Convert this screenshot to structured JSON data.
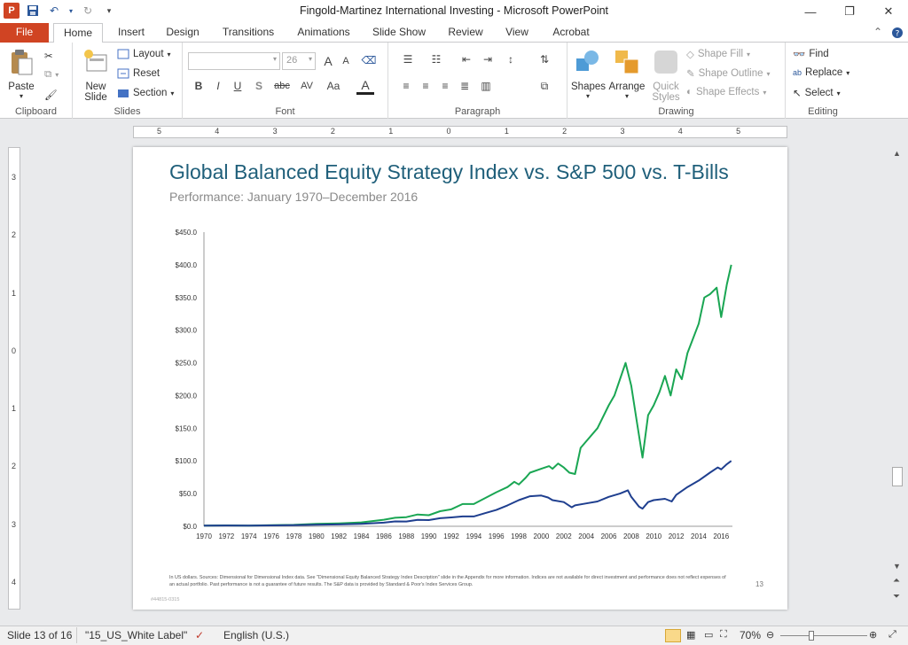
{
  "window": {
    "title": "Fingold-Martinez International Investing  -  Microsoft PowerPoint",
    "app_icon": "P",
    "qat": [
      "save-icon",
      "undo-icon",
      "redo-icon",
      "customize-icon"
    ],
    "controls": {
      "minimize": "—",
      "restore": "❐",
      "close": "✕"
    }
  },
  "tabs": [
    {
      "label": "File"
    },
    {
      "label": "Home"
    },
    {
      "label": "Insert"
    },
    {
      "label": "Design"
    },
    {
      "label": "Transitions"
    },
    {
      "label": "Animations"
    },
    {
      "label": "Slide Show"
    },
    {
      "label": "Review"
    },
    {
      "label": "View"
    },
    {
      "label": "Acrobat"
    }
  ],
  "ribbon": {
    "clipboard": {
      "label": "Clipboard",
      "paste": "Paste"
    },
    "slides": {
      "label": "Slides",
      "new_slide": "New Slide",
      "new_slide_arrow": "▾",
      "layout": "Layout",
      "reset": "Reset",
      "section": "Section"
    },
    "font": {
      "label": "Font",
      "font_name": "",
      "font_size": "26",
      "bold": "B",
      "italic": "I",
      "underline": "U",
      "shadow": "S",
      "strike": "abc",
      "spacing": "AV",
      "case": "Aa",
      "color": "A",
      "grow": "A",
      "shrink": "A"
    },
    "paragraph": {
      "label": "Paragraph"
    },
    "drawing": {
      "label": "Drawing",
      "shapes": "Shapes",
      "arrange": "Arrange",
      "quick_styles_1": "Quick",
      "quick_styles_2": "Styles",
      "shape_fill": "Shape Fill",
      "shape_outline": "Shape Outline",
      "shape_effects": "Shape Effects"
    },
    "editing": {
      "label": "Editing",
      "find": "Find",
      "replace": "Replace",
      "select": "Select"
    }
  },
  "ruler": {
    "h_labels": [
      "5",
      "4",
      "3",
      "2",
      "1",
      "0",
      "1",
      "2",
      "3",
      "4",
      "5"
    ],
    "v_labels": [
      "3",
      "2",
      "1",
      "0",
      "1",
      "2",
      "3",
      "4"
    ]
  },
  "slide": {
    "title": "Global Balanced Equity Strategy Index vs. S&P 500 vs. T-Bills",
    "subtitle": "Performance: January 1970–December 2016",
    "footnote": "In US dollars.  Sources: Dimensional  for Dimensional  Index data. See \"Dimensional  Equity Balanced Strategy Index Description\" slide in the Appendix for more information.  Indices are not available  for direct investment and performance does not reflect expenses of an actual portfolio.  Past performance is not a guarantee of future results.  The S&P data is provided  by Standard & Poor's Index Services Group.",
    "number": "13",
    "job_code": "#44815-0315"
  },
  "chart_data": {
    "type": "line",
    "ylim": [
      0,
      450
    ],
    "y_ticks": [
      "$450.0",
      "$400.0",
      "$350.0",
      "$300.0",
      "$250.0",
      "$200.0",
      "$150.0",
      "$100.0",
      "$50.0",
      "$0.0"
    ],
    "y_tick_values": [
      450,
      400,
      350,
      300,
      250,
      200,
      150,
      100,
      50,
      0
    ],
    "x_ticks": [
      "1970",
      "1972",
      "1974",
      "1976",
      "1978",
      "1980",
      "1982",
      "1984",
      "1986",
      "1988",
      "1990",
      "1992",
      "1994",
      "1996",
      "1998",
      "2000",
      "2002",
      "2004",
      "2006",
      "2008",
      "2010",
      "2012",
      "2014",
      "2016"
    ],
    "xlim": [
      1970,
      2017
    ],
    "series": [
      {
        "color": "#1aa653",
        "points": [
          [
            1970,
            1
          ],
          [
            1972,
            1.3
          ],
          [
            1974,
            1.1
          ],
          [
            1976,
            1.7
          ],
          [
            1978,
            2.2
          ],
          [
            1980,
            3.6
          ],
          [
            1982,
            4.5
          ],
          [
            1984,
            6
          ],
          [
            1986,
            10
          ],
          [
            1987,
            13
          ],
          [
            1988,
            14
          ],
          [
            1989,
            18
          ],
          [
            1990,
            17
          ],
          [
            1991,
            23
          ],
          [
            1992,
            26
          ],
          [
            1993,
            34
          ],
          [
            1994,
            34
          ],
          [
            1995,
            43
          ],
          [
            1996,
            52
          ],
          [
            1997,
            60
          ],
          [
            1997.6,
            68
          ],
          [
            1998,
            64
          ],
          [
            1998.6,
            74
          ],
          [
            1999,
            82
          ],
          [
            2000,
            88
          ],
          [
            2000.7,
            92
          ],
          [
            2001,
            88
          ],
          [
            2001.5,
            96
          ],
          [
            2002,
            90
          ],
          [
            2002.5,
            82
          ],
          [
            2003,
            80
          ],
          [
            2003.5,
            120
          ],
          [
            2004,
            130
          ],
          [
            2005,
            150
          ],
          [
            2006,
            185
          ],
          [
            2006.5,
            200
          ],
          [
            2007,
            225
          ],
          [
            2007.5,
            250
          ],
          [
            2008,
            215
          ],
          [
            2008.5,
            160
          ],
          [
            2009,
            105
          ],
          [
            2009.5,
            170
          ],
          [
            2010,
            185
          ],
          [
            2010.5,
            205
          ],
          [
            2011,
            230
          ],
          [
            2011.5,
            200
          ],
          [
            2012,
            240
          ],
          [
            2012.5,
            225
          ],
          [
            2013,
            265
          ],
          [
            2014,
            310
          ],
          [
            2014.5,
            350
          ],
          [
            2015,
            355
          ],
          [
            2015.6,
            365
          ],
          [
            2016,
            320
          ],
          [
            2016.5,
            370
          ],
          [
            2016.9,
            400
          ]
        ]
      },
      {
        "color": "#1f3f8f",
        "points": [
          [
            1970,
            1
          ],
          [
            1972,
            1.2
          ],
          [
            1974,
            1
          ],
          [
            1976,
            1.4
          ],
          [
            1978,
            1.6
          ],
          [
            1980,
            2.3
          ],
          [
            1982,
            2.8
          ],
          [
            1984,
            3.6
          ],
          [
            1986,
            5.5
          ],
          [
            1987,
            7.5
          ],
          [
            1988,
            7.3
          ],
          [
            1989,
            9.8
          ],
          [
            1990,
            9.5
          ],
          [
            1991,
            12.3
          ],
          [
            1992,
            13.5
          ],
          [
            1993,
            15
          ],
          [
            1994,
            15
          ],
          [
            1995,
            20
          ],
          [
            1996,
            25
          ],
          [
            1997,
            32
          ],
          [
            1998,
            40
          ],
          [
            1999,
            46
          ],
          [
            2000,
            47
          ],
          [
            2000.6,
            44
          ],
          [
            2001,
            40
          ],
          [
            2002,
            37
          ],
          [
            2002.7,
            29
          ],
          [
            2003,
            32
          ],
          [
            2004,
            35
          ],
          [
            2005,
            38
          ],
          [
            2006,
            45
          ],
          [
            2007,
            50
          ],
          [
            2007.7,
            55
          ],
          [
            2008,
            45
          ],
          [
            2008.7,
            30
          ],
          [
            2009,
            27
          ],
          [
            2009.5,
            37
          ],
          [
            2010,
            40
          ],
          [
            2011,
            42
          ],
          [
            2011.6,
            38
          ],
          [
            2012,
            48
          ],
          [
            2013,
            60
          ],
          [
            2014,
            70
          ],
          [
            2015,
            82
          ],
          [
            2015.7,
            90
          ],
          [
            2016,
            87
          ],
          [
            2016.5,
            95
          ],
          [
            2016.9,
            100
          ]
        ]
      }
    ]
  },
  "status": {
    "slide": "Slide 13 of 16",
    "theme": "\"15_US_White Label\"",
    "language": "English (U.S.)",
    "zoom": "70%",
    "zoom_level": 0.7
  }
}
